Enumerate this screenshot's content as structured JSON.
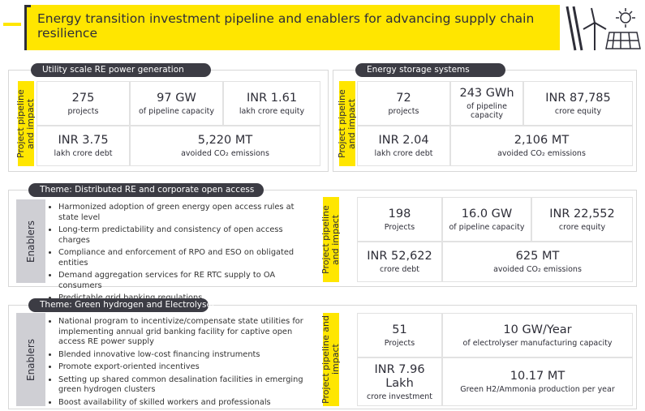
{
  "header": {
    "title": "Energy transition investment pipeline and enablers for advancing supply chain resilience"
  },
  "sections": [
    {
      "title": "Utility scale RE power generation",
      "impact_label": "Project pipeline and impact",
      "metrics": [
        {
          "value": "275",
          "label": "projects"
        },
        {
          "value": "97 GW",
          "label": "of pipeline capacity"
        },
        {
          "value": "INR 1.61",
          "label": "lakh crore equity"
        },
        {
          "value": "INR 3.75",
          "label": "lakh crore debt"
        },
        {
          "value": "5,220 MT",
          "label": "avoided CO₂ emissions"
        }
      ]
    },
    {
      "title": "Energy storage systems",
      "impact_label": "Project pipeline and impact",
      "metrics": [
        {
          "value": "72",
          "label": "projects"
        },
        {
          "value": "243 GWh",
          "label": "of pipeline capacity"
        },
        {
          "value": "INR 87,785",
          "label": "crore equity"
        },
        {
          "value": "INR 2.04",
          "label": "lakh crore debt"
        },
        {
          "value": "2,106 MT",
          "label": "avoided CO₂ emissions"
        }
      ]
    },
    {
      "title": "Theme: Distributed RE and corporate open access",
      "enablers_label": "Enablers",
      "enablers": [
        "Harmonized adoption of green energy open access rules at state level",
        "Long-term predictability and consistency of open access charges",
        "Compliance and enforcement of RPO and ESO on obligated entities",
        "Demand aggregation services for RE RTC supply to OA consumers",
        "Predictable grid banking regulations"
      ],
      "impact_label": "Project pipeline and impact",
      "metrics": [
        {
          "value": "198",
          "label": "Projects"
        },
        {
          "value": "16.0 GW",
          "label": "of pipeline capacity"
        },
        {
          "value": "INR 22,552",
          "label": "crore equity"
        },
        {
          "value": "INR 52,622",
          "label": "crore debt"
        },
        {
          "value": "625 MT",
          "label": "avoided CO₂ emissions"
        }
      ]
    },
    {
      "title": "Theme: Green hydrogen and Electrolyser",
      "enablers_label": "Enablers",
      "enablers": [
        "National program to incentivize/compensate state utilities for implementing annual grid banking facility for captive open access RE power supply",
        "Blended innovative low-cost financing instruments",
        "Promote export-oriented incentives",
        "Setting up shared common desalination facilities in emerging green hydrogen clusters",
        "Boost availability of skilled workers and professionals"
      ],
      "impact_label": "Project pipeline and impact",
      "metrics": [
        {
          "value": "51",
          "label": "Projects"
        },
        {
          "value": "10 GW/Year",
          "label": "of electrolyser manufacturing capacity"
        },
        {
          "value": "INR 7.96 Lakh",
          "label": "crore investment"
        },
        {
          "value": "10.17 MT",
          "label": "Green H2/Ammonia production per year"
        }
      ]
    }
  ]
}
